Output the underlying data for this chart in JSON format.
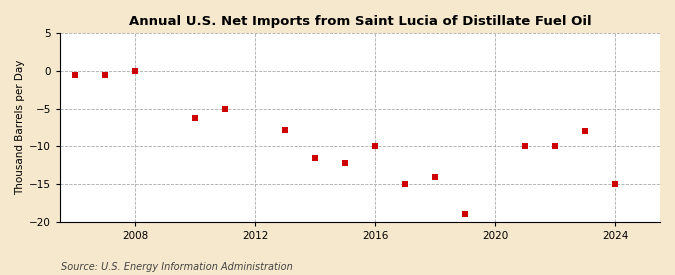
{
  "title": "Annual U.S. Net Imports from Saint Lucia of Distillate Fuel Oil",
  "ylabel": "Thousand Barrels per Day",
  "source": "Source: U.S. Energy Information Administration",
  "years": [
    2006,
    2007,
    2008,
    2010,
    2011,
    2013,
    2014,
    2015,
    2016,
    2017,
    2018,
    2019,
    2021,
    2022,
    2023,
    2024
  ],
  "values": [
    -0.5,
    -0.5,
    0.0,
    -6.2,
    -5.0,
    -7.8,
    -11.5,
    -12.2,
    -10.0,
    -15.0,
    -14.0,
    -19.0,
    -10.0,
    -10.0,
    -8.0,
    -15.0
  ],
  "marker_color": "#cc0000",
  "marker_size": 4,
  "background_color": "#f5e8cc",
  "plot_bg_color": "#ffffff",
  "grid_color": "#aaaaaa",
  "title_fontsize": 9.5,
  "label_fontsize": 7.5,
  "tick_fontsize": 7.5,
  "source_fontsize": 7,
  "ylim": [
    -20,
    5
  ],
  "yticks": [
    -20,
    -15,
    -10,
    -5,
    0,
    5
  ],
  "xlim": [
    2005.5,
    2025.5
  ],
  "xticks": [
    2008,
    2012,
    2016,
    2020,
    2024
  ]
}
